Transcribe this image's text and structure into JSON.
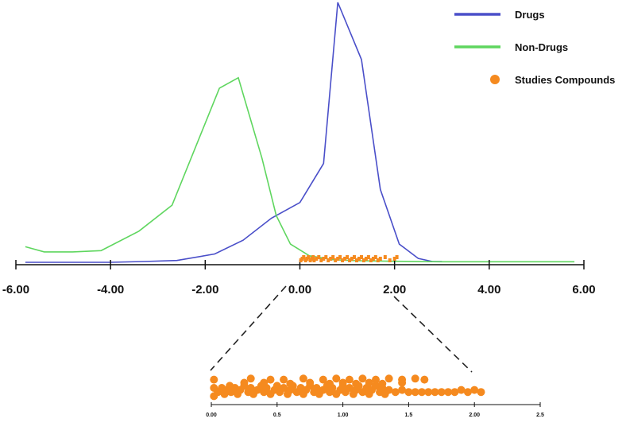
{
  "chart_data": [
    {
      "type": "line",
      "xlim": [
        -6,
        6
      ],
      "ylim": [
        0,
        1
      ],
      "xticks": [
        -6,
        -4,
        -2,
        0,
        2,
        4,
        6
      ],
      "xtick_labels": [
        "-6.00",
        "-4.00",
        "-2.00",
        "0.00",
        "2.00",
        "4.00",
        "6.00"
      ],
      "legend_position": "top-right",
      "legend": [
        {
          "label": "Drugs",
          "color": "#4a4fc9",
          "marker": "line"
        },
        {
          "label": "Non-Drugs",
          "color": "#5fd65f",
          "marker": "line"
        },
        {
          "label": "Studies Compounds",
          "color": "#f58a1f",
          "marker": "dot"
        }
      ],
      "series": [
        {
          "name": "Drugs",
          "color": "#4a4fc9",
          "x": [
            -5.8,
            -4.0,
            -3.3,
            -2.6,
            -1.8,
            -1.2,
            -0.6,
            0.0,
            0.5,
            0.8,
            1.3,
            1.7,
            2.1,
            2.5,
            2.8,
            3.0
          ],
          "y": [
            0.0,
            0.0,
            0.003,
            0.007,
            0.032,
            0.085,
            0.17,
            0.23,
            0.38,
            1.0,
            0.78,
            0.28,
            0.07,
            0.015,
            0.003,
            0.003
          ]
        },
        {
          "name": "Non-Drugs",
          "color": "#5fd65f",
          "x": [
            -5.8,
            -5.4,
            -4.8,
            -4.2,
            -3.4,
            -2.7,
            -1.7,
            -1.3,
            -0.8,
            -0.5,
            -0.2,
            0.2,
            0.7,
            1.2,
            2.0,
            3.0,
            5.8
          ],
          "y": [
            0.06,
            0.04,
            0.04,
            0.045,
            0.12,
            0.22,
            0.67,
            0.71,
            0.4,
            0.18,
            0.07,
            0.025,
            0.01,
            0.006,
            0.004,
            0.002,
            0.002
          ]
        },
        {
          "name": "Studies Compounds",
          "type": "scatter",
          "color": "#f58a1f",
          "x": [
            0.02,
            0.05,
            0.08,
            0.12,
            0.15,
            0.18,
            0.22,
            0.25,
            0.28,
            0.3,
            0.35,
            0.4,
            0.45,
            0.5,
            0.55,
            0.6,
            0.65,
            0.7,
            0.75,
            0.8,
            0.85,
            0.9,
            0.95,
            1.0,
            1.05,
            1.1,
            1.15,
            1.2,
            1.25,
            1.3,
            1.35,
            1.4,
            1.45,
            1.5,
            1.55,
            1.6,
            1.65,
            1.7,
            1.8,
            1.9,
            2.0,
            2.05
          ],
          "y": [
            0.02,
            0.03,
            0.01,
            0.02,
            0.03,
            0.02,
            0.01,
            0.03,
            0.02,
            0.01,
            0.02,
            0.03,
            0.01,
            0.02,
            0.03,
            0.02,
            0.01,
            0.03,
            0.02,
            0.01,
            0.02,
            0.03,
            0.01,
            0.02,
            0.03,
            0.02,
            0.01,
            0.03,
            0.02,
            0.01,
            0.02,
            0.03,
            0.01,
            0.02,
            0.02,
            0.01,
            0.02,
            0.01,
            0.01,
            0.01,
            0.01,
            0.01
          ]
        }
      ]
    },
    {
      "type": "scatter",
      "title": "",
      "name": "Studies Compounds (zoom)",
      "color": "#f58a1f",
      "xlim": [
        0,
        2.5
      ],
      "xticks": [
        0,
        0.5,
        1.0,
        1.5,
        2.0,
        2.5
      ],
      "xtick_labels": [
        "0.00",
        "0.5",
        "1.00",
        "1.5",
        "2.00",
        "2.5"
      ],
      "zoom_range": [
        0.0,
        2.0
      ],
      "x": [
        0.02,
        0.02,
        0.02,
        0.05,
        0.08,
        0.1,
        0.12,
        0.14,
        0.15,
        0.18,
        0.2,
        0.22,
        0.25,
        0.28,
        0.3,
        0.32,
        0.35,
        0.38,
        0.4,
        0.42,
        0.45,
        0.48,
        0.5,
        0.52,
        0.55,
        0.58,
        0.6,
        0.62,
        0.65,
        0.68,
        0.7,
        0.72,
        0.75,
        0.78,
        0.8,
        0.82,
        0.85,
        0.88,
        0.9,
        0.92,
        0.95,
        0.98,
        1.0,
        1.02,
        1.05,
        1.08,
        1.1,
        1.12,
        1.15,
        1.18,
        1.2,
        1.22,
        1.25,
        1.28,
        1.3,
        1.32,
        1.35,
        1.4,
        1.45,
        1.5,
        1.55,
        1.6,
        1.62,
        1.65,
        1.7,
        1.75,
        1.8,
        1.85,
        1.9,
        1.95,
        2.0,
        2.05,
        0.3,
        0.45,
        0.55,
        0.7,
        0.85,
        0.95,
        1.05,
        1.15,
        1.25,
        1.35,
        1.45,
        1.55,
        0.25,
        0.4,
        0.6,
        0.75,
        0.9,
        1.0,
        1.1,
        1.2,
        1.3,
        1.45
      ],
      "y": [
        0.1,
        0.5,
        0.9,
        0.3,
        0.5,
        0.2,
        0.4,
        0.6,
        0.3,
        0.5,
        0.2,
        0.4,
        0.6,
        0.3,
        0.5,
        0.2,
        0.4,
        0.6,
        0.3,
        0.5,
        0.2,
        0.4,
        0.6,
        0.3,
        0.5,
        0.2,
        0.4,
        0.6,
        0.3,
        0.5,
        0.2,
        0.4,
        0.6,
        0.3,
        0.5,
        0.2,
        0.4,
        0.6,
        0.3,
        0.5,
        0.2,
        0.4,
        0.6,
        0.3,
        0.5,
        0.2,
        0.4,
        0.6,
        0.3,
        0.5,
        0.2,
        0.4,
        0.6,
        0.3,
        0.5,
        0.2,
        0.4,
        0.3,
        0.4,
        0.3,
        0.3,
        0.3,
        0.9,
        0.3,
        0.3,
        0.3,
        0.3,
        0.3,
        0.4,
        0.3,
        0.4,
        0.3,
        0.95,
        0.9,
        0.9,
        0.95,
        0.9,
        0.95,
        0.9,
        0.95,
        0.9,
        0.95,
        0.9,
        0.95,
        0.75,
        0.75,
        0.7,
        0.75,
        0.7,
        0.75,
        0.7,
        0.75,
        0.7,
        0.75
      ]
    }
  ]
}
